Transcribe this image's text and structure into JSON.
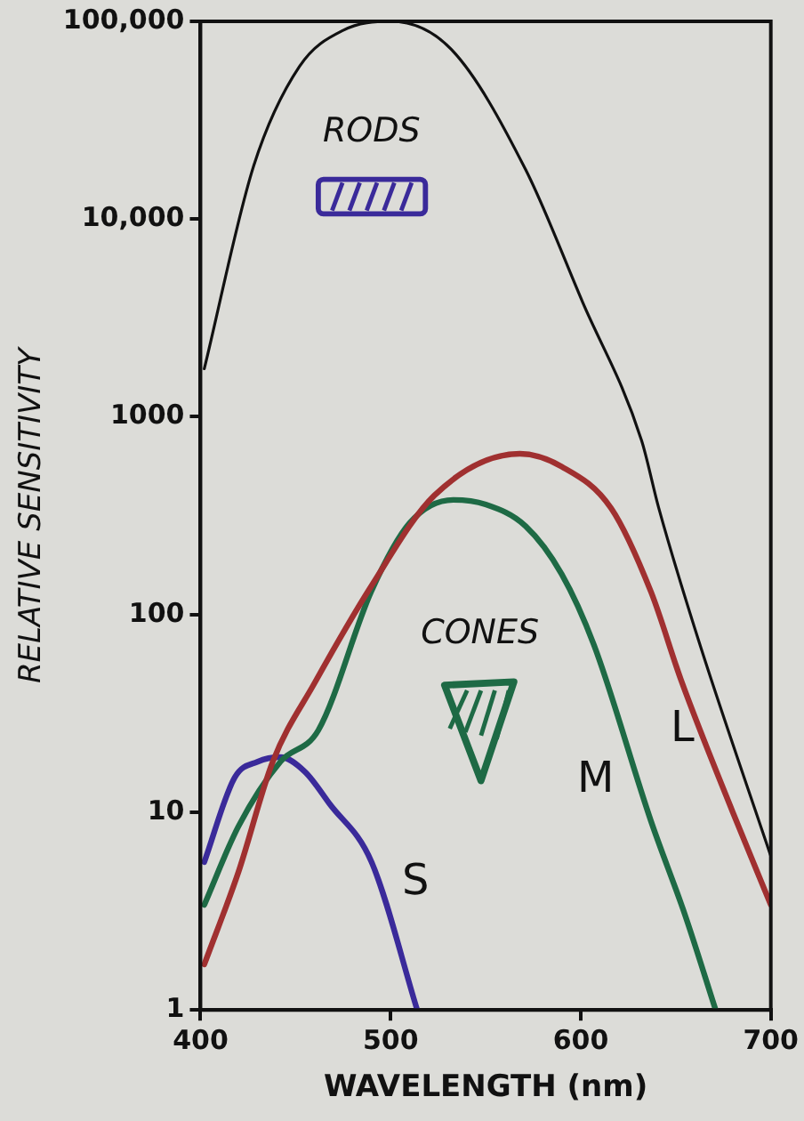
{
  "chart_data": {
    "type": "line",
    "xlabel": "WAVELENGTH (nm)",
    "ylabel": "RELATIVE SENSITIVITY",
    "log": "y",
    "grid": false,
    "legend": false,
    "marker": "none",
    "line_style": "solid",
    "xlim": [
      400,
      700
    ],
    "xticks": [
      400,
      500,
      600,
      700
    ],
    "ylim": [
      1,
      100000
    ],
    "yticks": [
      1,
      10,
      100,
      1000,
      {
        "value": 10000,
        "label": "10,000"
      },
      {
        "value": 100000,
        "label": "100,000"
      }
    ],
    "series": [
      {
        "color": "#111111",
        "x": [
          402,
          428,
          452,
          475,
          500,
          532,
          571,
          601,
          632,
          641,
          662,
          700
        ],
        "values": [
          1750,
          18600,
          59000,
          90000,
          100000,
          72000,
          17800,
          3800,
          760,
          347,
          74,
          6
        ]
      },
      {
        "name": "L",
        "color": "#a03030",
        "x": [
          402,
          420,
          438,
          460,
          490,
          523,
          568,
          590,
          616,
          637,
          653,
          680,
          700
        ],
        "values": [
          1.7,
          5,
          18,
          45,
          140,
          400,
          650,
          560,
          345,
          130,
          46,
          10,
          3.4
        ]
      },
      {
        "name": "M",
        "color": "#1e6a45",
        "x": [
          402,
          420,
          442,
          462,
          490,
          510,
          533,
          550,
          571,
          590,
          607,
          637,
          655,
          671
        ],
        "values": [
          3.4,
          8.5,
          18,
          26,
          132,
          290,
          380,
          360,
          280,
          160,
          70,
          9,
          3,
          1
        ]
      },
      {
        "name": "S",
        "color": "#3a2a9a",
        "x": [
          402,
          418,
          430,
          442,
          455,
          468,
          490,
          514
        ],
        "values": [
          5.6,
          15,
          18,
          19,
          16,
          11,
          5.6,
          1
        ]
      }
    ],
    "annotations": [
      "RODS",
      "CONES"
    ]
  }
}
